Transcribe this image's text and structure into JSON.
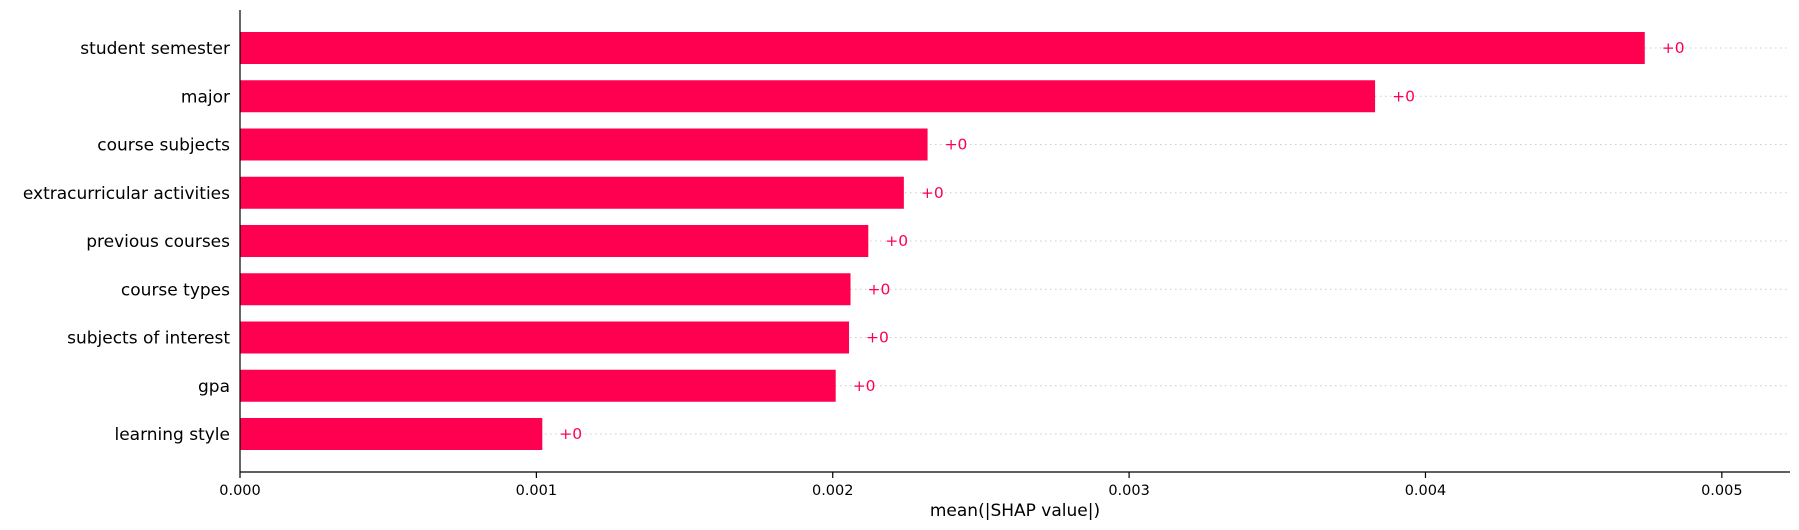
{
  "chart_data": {
    "type": "bar",
    "orientation": "horizontal",
    "categories": [
      "student semester",
      "major",
      "course subjects",
      "extracurricular activities",
      "previous courses",
      "course types",
      "subjects of interest",
      "gpa",
      "learning style"
    ],
    "values": [
      0.00474,
      0.00383,
      0.00232,
      0.00224,
      0.00212,
      0.00206,
      0.002055,
      0.00201,
      0.00102
    ],
    "data_labels": [
      "+0",
      "+0",
      "+0",
      "+0",
      "+0",
      "+0",
      "+0",
      "+0",
      "+0"
    ],
    "xlabel": "mean(|SHAP value|)",
    "ylabel": "",
    "xlim": [
      0,
      0.00523
    ],
    "xticks": [
      0,
      0.001,
      0.002,
      0.003,
      0.004,
      0.005
    ],
    "xtick_labels": [
      "0.000",
      "0.001",
      "0.002",
      "0.003",
      "0.004",
      "0.005"
    ],
    "bar_color": "#ff0051",
    "grid": false,
    "row_guides": "dotted"
  }
}
